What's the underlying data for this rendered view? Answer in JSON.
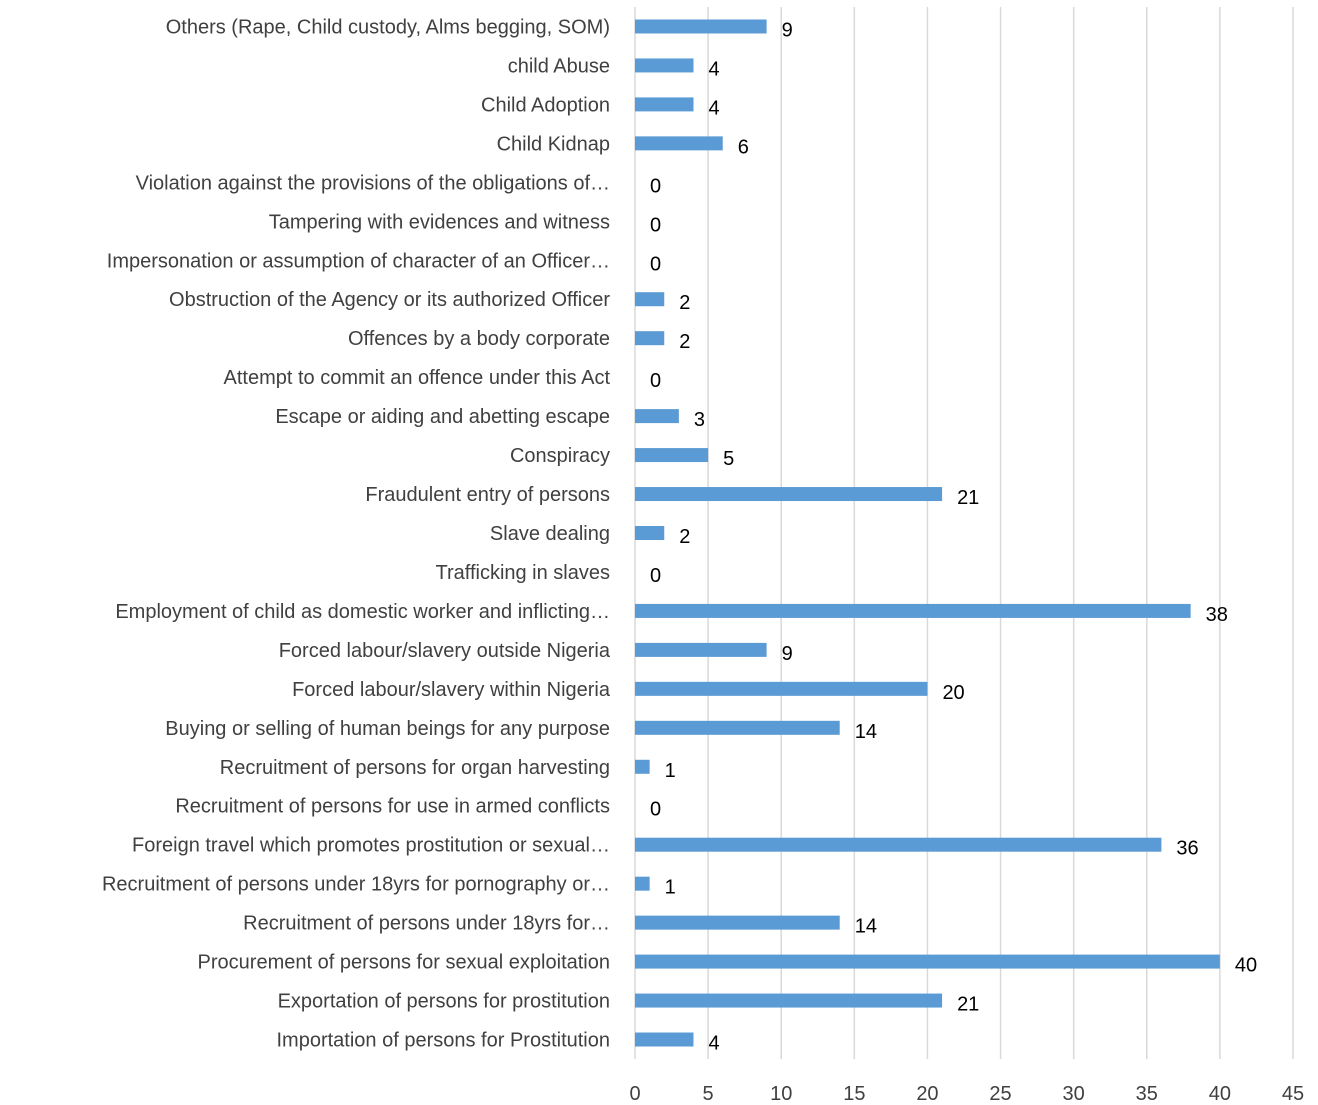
{
  "chart_data": {
    "type": "bar",
    "orientation": "horizontal",
    "title": "",
    "xlabel": "",
    "ylabel": "",
    "xlim": [
      0,
      45
    ],
    "x_ticks": [
      0,
      5,
      10,
      15,
      20,
      25,
      30,
      35,
      40,
      45
    ],
    "grid": "vertical",
    "bar_color": "#5b9bd5",
    "categories": [
      "Others (Rape, Child custody, Alms begging, SOM)",
      "child Abuse",
      "Child Adoption",
      "Child Kidnap",
      "Violation against the provisions of the obligations of…",
      "Tampering with evidences and witness",
      "Impersonation or assumption of character of an Officer…",
      "Obstruction of the Agency or its authorized Officer",
      "Offences by a body corporate",
      "Attempt to commit an offence under this Act",
      "Escape or aiding and abetting escape",
      "Conspiracy",
      "Fraudulent entry of persons",
      "Slave dealing",
      "Trafficking in slaves",
      "Employment of child as domestic worker and inflicting…",
      "Forced labour/slavery outside Nigeria",
      "Forced labour/slavery within Nigeria",
      "Buying or selling of human beings for any purpose",
      "Recruitment of persons for organ harvesting",
      "Recruitment of persons for use in armed conflicts",
      "Foreign travel which promotes prostitution or sexual…",
      "Recruitment of persons under 18yrs for pornography or…",
      "Recruitment of persons under 18yrs for…",
      "Procurement of persons for sexual exploitation",
      "Exportation of persons for prostitution",
      "Importation of persons for Prostitution"
    ],
    "values": [
      9,
      4,
      4,
      6,
      0,
      0,
      0,
      2,
      2,
      0,
      3,
      5,
      21,
      2,
      0,
      38,
      9,
      20,
      14,
      1,
      0,
      36,
      1,
      14,
      40,
      21,
      4
    ]
  }
}
